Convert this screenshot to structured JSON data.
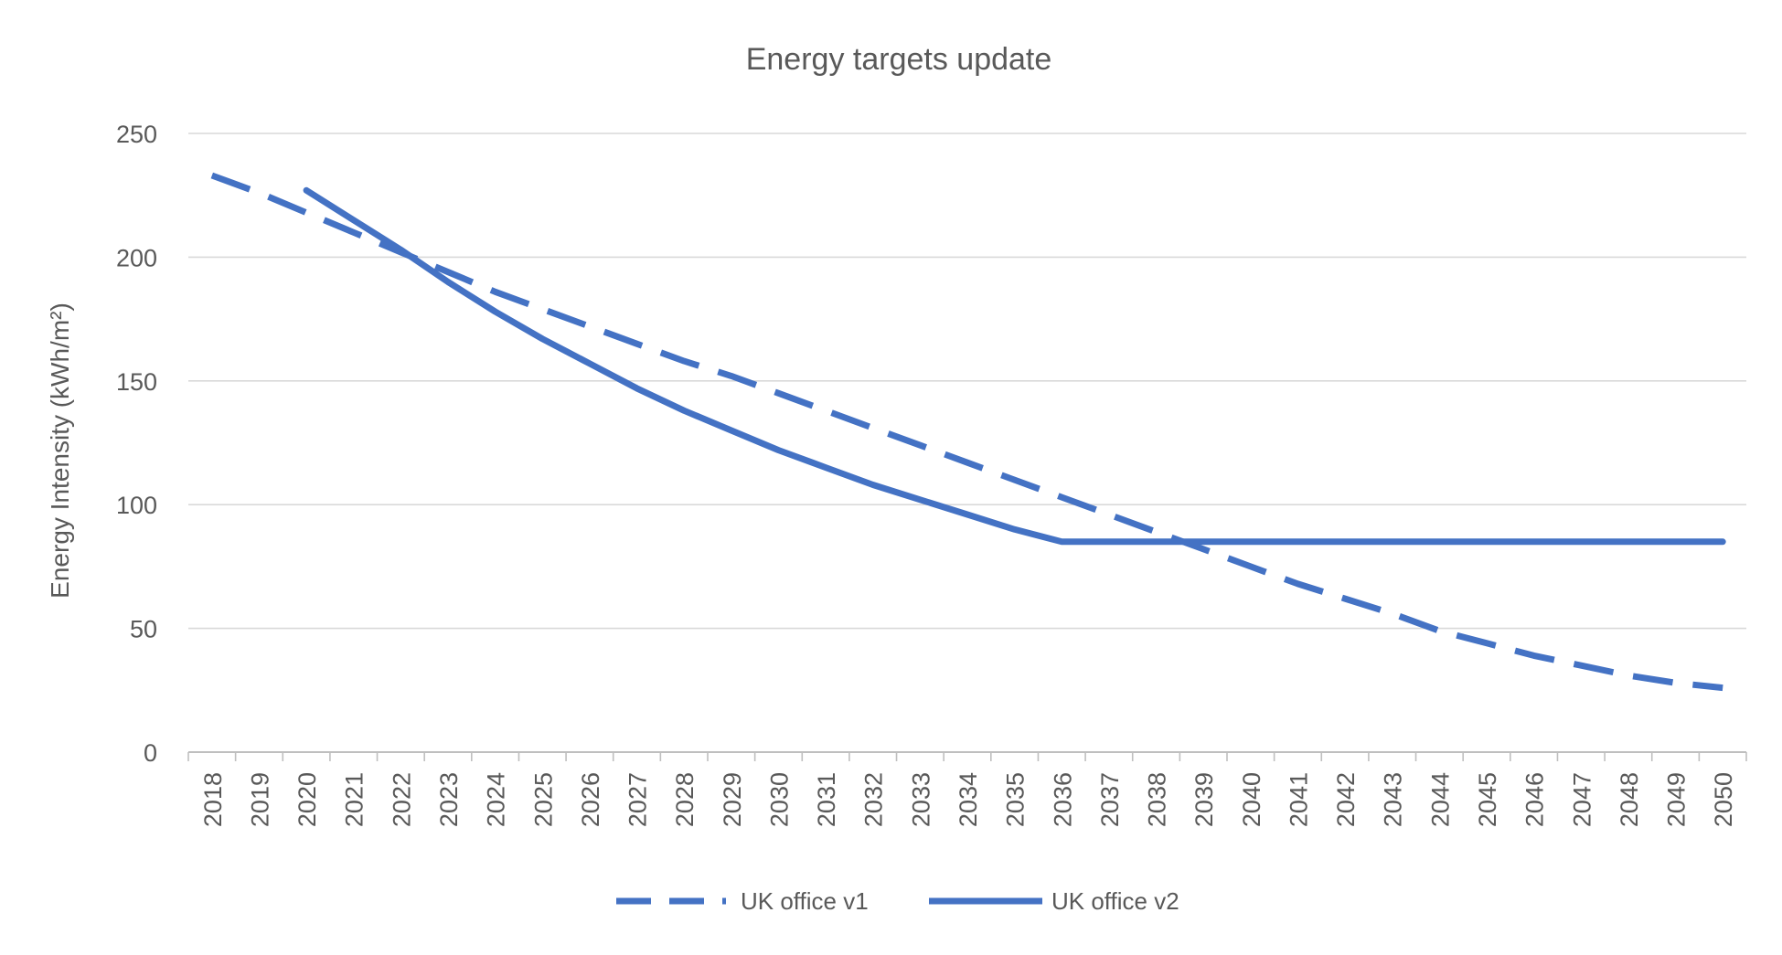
{
  "chart_data": {
    "type": "line",
    "title": "Energy targets update",
    "xlabel": "",
    "ylabel": "Energy Intensity (kWh/m²)",
    "ylim": [
      0,
      250
    ],
    "yticks": [
      0,
      50,
      100,
      150,
      200,
      250
    ],
    "grid": "horizontal",
    "legend_position": "bottom",
    "categories": [
      "2018",
      "2019",
      "2020",
      "2021",
      "2022",
      "2023",
      "2024",
      "2025",
      "2026",
      "2027",
      "2028",
      "2029",
      "2030",
      "2031",
      "2032",
      "2033",
      "2034",
      "2035",
      "2036",
      "2037",
      "2038",
      "2039",
      "2040",
      "2041",
      "2042",
      "2043",
      "2044",
      "2045",
      "2046",
      "2047",
      "2048",
      "2049",
      "2050"
    ],
    "series": [
      {
        "name": "UK office v1",
        "style": "dashed",
        "color": "#4472C4",
        "values": [
          233,
          226,
          218,
          210,
          202,
          194,
          186,
          179,
          172,
          165,
          158,
          152,
          145,
          138,
          131,
          124,
          117,
          110,
          103,
          96,
          89,
          82,
          75,
          68,
          62,
          56,
          49,
          44,
          39,
          35,
          31,
          28,
          26
        ]
      },
      {
        "name": "UK office v2",
        "style": "solid",
        "color": "#4472C4",
        "values": [
          null,
          null,
          227,
          215,
          203,
          190,
          178,
          167,
          157,
          147,
          138,
          130,
          122,
          115,
          108,
          102,
          96,
          90,
          85,
          85,
          85,
          85,
          85,
          85,
          85,
          85,
          85,
          85,
          85,
          85,
          85,
          85,
          85
        ]
      }
    ]
  }
}
